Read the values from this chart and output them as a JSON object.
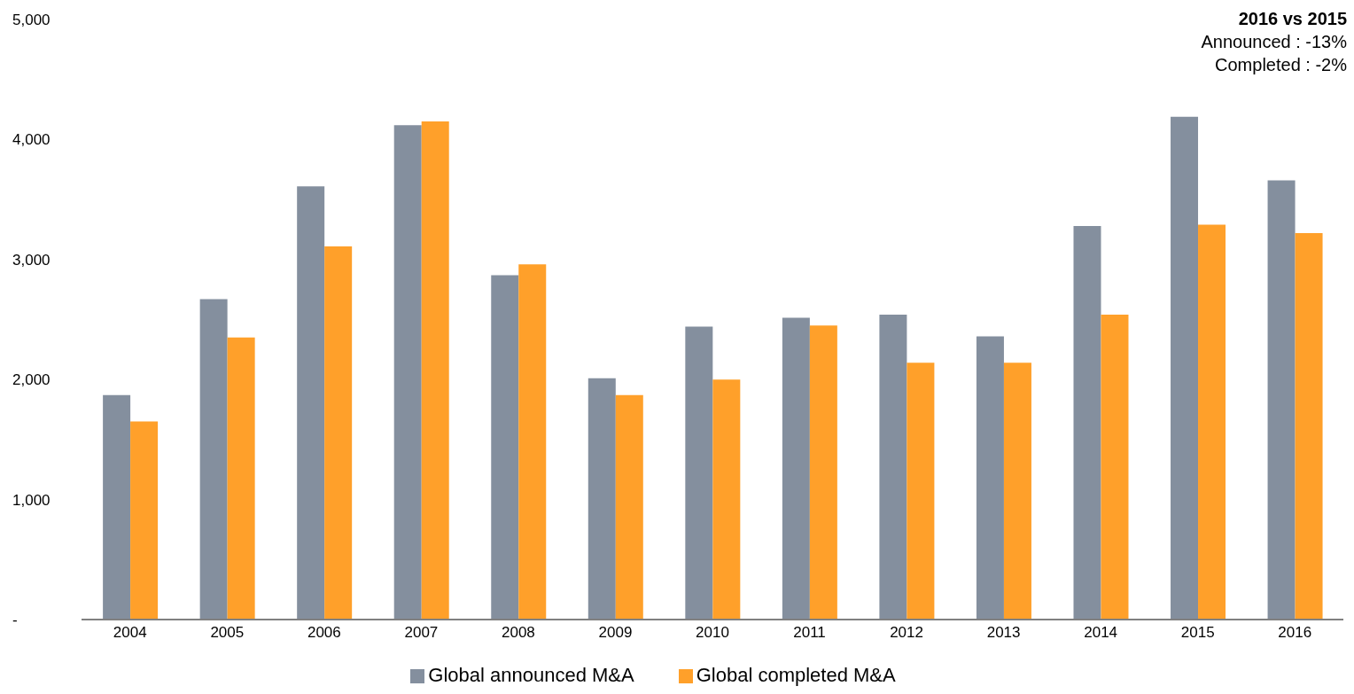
{
  "chart_data": {
    "type": "bar",
    "categories": [
      "2004",
      "2005",
      "2006",
      "2007",
      "2008",
      "2009",
      "2010",
      "2011",
      "2012",
      "2013",
      "2014",
      "2015",
      "2016"
    ],
    "series": [
      {
        "name": "Global announced M&A",
        "color": "#848f9e",
        "values": [
          1870,
          2670,
          3610,
          4120,
          2870,
          2010,
          2440,
          2515,
          2540,
          2360,
          3280,
          4190,
          3660
        ]
      },
      {
        "name": "Global completed M&A",
        "color": "#ffa02a",
        "values": [
          1650,
          2350,
          3110,
          4150,
          2960,
          1870,
          2000,
          2450,
          2140,
          2140,
          2540,
          3290,
          3220
        ]
      }
    ],
    "ylim": [
      0,
      5000
    ],
    "yticks": [
      {
        "value": 0,
        "label": "-"
      },
      {
        "value": 1000,
        "label": "1,000"
      },
      {
        "value": 2000,
        "label": "2,000"
      },
      {
        "value": 3000,
        "label": "3,000"
      },
      {
        "value": 4000,
        "label": "4,000"
      },
      {
        "value": 5000,
        "label": "5,000"
      }
    ],
    "grid": false,
    "legend": "bottom",
    "annotations": [
      "2016 vs 2015",
      "Announced : -13%",
      "Completed : -2%"
    ]
  }
}
